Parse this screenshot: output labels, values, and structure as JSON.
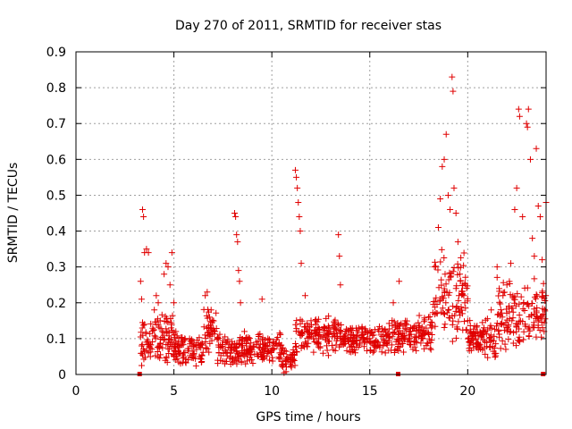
{
  "chart_data": {
    "type": "scatter",
    "title": "Day 270 of 2011, SRMTID for receiver stas",
    "xlabel": "GPS time / hours",
    "ylabel": "SRMTID / TECUs",
    "xlim": [
      0,
      24
    ],
    "ylim": [
      0,
      0.9
    ],
    "xticks": [
      0,
      5,
      10,
      15,
      20
    ],
    "xtick_labels": [
      "0",
      "5",
      "10",
      "15",
      "20"
    ],
    "yticks": [
      0,
      0.1,
      0.2,
      0.3,
      0.4,
      0.5,
      0.6,
      0.7,
      0.8,
      0.9
    ],
    "ytick_labels": [
      "0",
      "0.1",
      "0.2",
      "0.3",
      "0.4",
      "0.5",
      "0.6",
      "0.7",
      "0.8",
      "0.9"
    ],
    "grid": true,
    "marker": "+",
    "color": "#e00000",
    "zero_value_markers_x": [
      3.25,
      16.45,
      23.85
    ],
    "series": [
      {
        "name": "SRMTID",
        "points": [
          [
            3.4,
            0.46
          ],
          [
            3.45,
            0.44
          ],
          [
            3.5,
            0.34
          ],
          [
            3.6,
            0.35
          ],
          [
            3.7,
            0.34
          ],
          [
            3.3,
            0.26
          ],
          [
            3.35,
            0.21
          ],
          [
            3.5,
            0.14
          ],
          [
            3.6,
            0.09
          ],
          [
            3.7,
            0.06
          ],
          [
            3.8,
            0.05
          ],
          [
            3.9,
            0.12
          ],
          [
            4.0,
            0.18
          ],
          [
            4.1,
            0.22
          ],
          [
            4.2,
            0.2
          ],
          [
            4.3,
            0.15
          ],
          [
            4.4,
            0.12
          ],
          [
            4.5,
            0.28
          ],
          [
            4.6,
            0.31
          ],
          [
            4.7,
            0.3
          ],
          [
            4.8,
            0.25
          ],
          [
            4.9,
            0.34
          ],
          [
            5.0,
            0.2
          ],
          [
            5.1,
            0.12
          ],
          [
            5.3,
            0.08
          ],
          [
            5.5,
            0.06
          ],
          [
            5.8,
            0.1
          ],
          [
            6.0,
            0.08
          ],
          [
            6.3,
            0.05
          ],
          [
            6.6,
            0.22
          ],
          [
            6.7,
            0.23
          ],
          [
            6.9,
            0.18
          ],
          [
            7.1,
            0.12
          ],
          [
            7.3,
            0.06
          ],
          [
            7.6,
            0.03
          ],
          [
            7.9,
            0.06
          ],
          [
            8.1,
            0.45
          ],
          [
            8.15,
            0.44
          ],
          [
            8.2,
            0.39
          ],
          [
            8.25,
            0.37
          ],
          [
            8.3,
            0.29
          ],
          [
            8.35,
            0.26
          ],
          [
            8.4,
            0.2
          ],
          [
            8.6,
            0.12
          ],
          [
            8.9,
            0.07
          ],
          [
            9.2,
            0.09
          ],
          [
            9.5,
            0.21
          ],
          [
            9.8,
            0.1
          ],
          [
            10.1,
            0.07
          ],
          [
            10.4,
            0.06
          ],
          [
            10.7,
            0.03
          ],
          [
            11.0,
            0.02
          ],
          [
            11.2,
            0.57
          ],
          [
            11.25,
            0.55
          ],
          [
            11.3,
            0.52
          ],
          [
            11.35,
            0.48
          ],
          [
            11.4,
            0.44
          ],
          [
            11.45,
            0.4
          ],
          [
            11.5,
            0.31
          ],
          [
            11.7,
            0.22
          ],
          [
            12.0,
            0.15
          ],
          [
            12.4,
            0.1
          ],
          [
            12.8,
            0.08
          ],
          [
            13.2,
            0.14
          ],
          [
            13.4,
            0.39
          ],
          [
            13.45,
            0.33
          ],
          [
            13.5,
            0.25
          ],
          [
            13.8,
            0.12
          ],
          [
            14.2,
            0.09
          ],
          [
            14.6,
            0.13
          ],
          [
            15.0,
            0.1
          ],
          [
            15.4,
            0.08
          ],
          [
            15.8,
            0.12
          ],
          [
            16.2,
            0.2
          ],
          [
            16.5,
            0.26
          ],
          [
            16.8,
            0.1
          ],
          [
            17.2,
            0.07
          ],
          [
            17.6,
            0.12
          ],
          [
            18.0,
            0.16
          ],
          [
            18.3,
            0.3
          ],
          [
            18.5,
            0.41
          ],
          [
            18.6,
            0.49
          ],
          [
            18.7,
            0.58
          ],
          [
            18.8,
            0.6
          ],
          [
            18.9,
            0.67
          ],
          [
            19.0,
            0.5
          ],
          [
            19.1,
            0.46
          ],
          [
            19.2,
            0.83
          ],
          [
            19.25,
            0.79
          ],
          [
            19.3,
            0.52
          ],
          [
            19.4,
            0.45
          ],
          [
            19.5,
            0.37
          ],
          [
            19.6,
            0.28
          ],
          [
            19.8,
            0.22
          ],
          [
            20.0,
            0.15
          ],
          [
            20.3,
            0.1
          ],
          [
            20.6,
            0.08
          ],
          [
            20.9,
            0.12
          ],
          [
            21.2,
            0.18
          ],
          [
            21.5,
            0.3
          ],
          [
            21.8,
            0.22
          ],
          [
            22.0,
            0.25
          ],
          [
            22.2,
            0.31
          ],
          [
            22.4,
            0.46
          ],
          [
            22.5,
            0.52
          ],
          [
            22.6,
            0.74
          ],
          [
            22.65,
            0.72
          ],
          [
            22.8,
            0.44
          ],
          [
            23.0,
            0.7
          ],
          [
            23.05,
            0.69
          ],
          [
            23.1,
            0.74
          ],
          [
            23.2,
            0.6
          ],
          [
            23.3,
            0.38
          ],
          [
            23.4,
            0.33
          ],
          [
            23.5,
            0.63
          ],
          [
            23.6,
            0.47
          ],
          [
            23.7,
            0.44
          ],
          [
            23.8,
            0.32
          ],
          [
            23.9,
            0.12
          ],
          [
            24.0,
            0.48
          ]
        ]
      }
    ]
  }
}
